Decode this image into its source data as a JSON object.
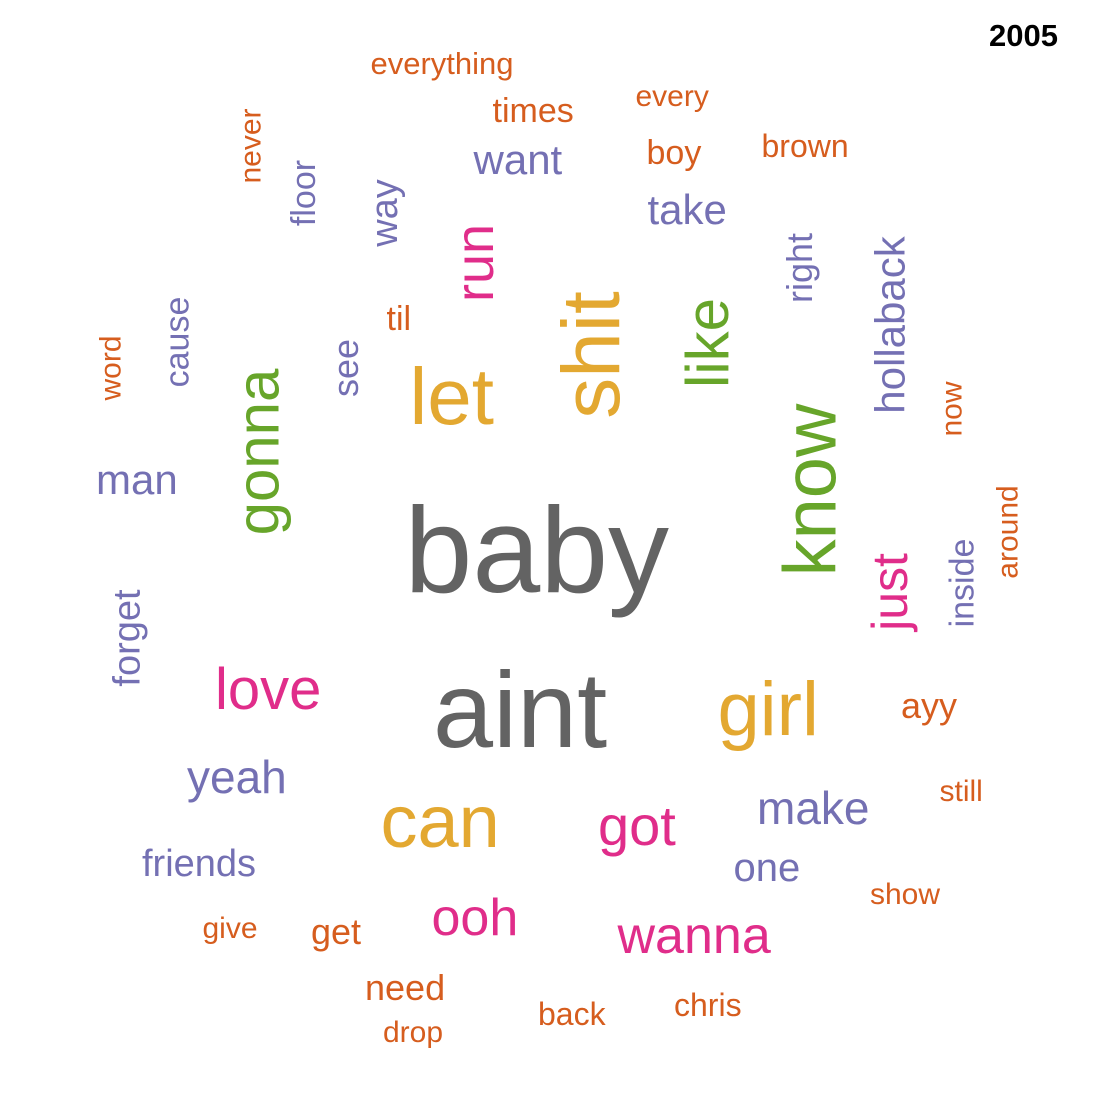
{
  "year": "2005",
  "palette": {
    "gray": "#636363",
    "gold": "#E3A831",
    "green": "#67A52A",
    "pink": "#E02D8A",
    "purple": "#7470B3",
    "orange": "#D65D1E"
  },
  "words": [
    {
      "text": "baby",
      "color": "gray",
      "orientation": "horizontal"
    },
    {
      "text": "aint",
      "color": "gray",
      "orientation": "horizontal"
    },
    {
      "text": "shit",
      "color": "gold",
      "orientation": "vertical"
    },
    {
      "text": "know",
      "color": "green",
      "orientation": "vertical"
    },
    {
      "text": "gonna",
      "color": "green",
      "orientation": "vertical"
    },
    {
      "text": "like",
      "color": "green",
      "orientation": "vertical"
    },
    {
      "text": "let",
      "color": "gold",
      "orientation": "horizontal"
    },
    {
      "text": "can",
      "color": "gold",
      "orientation": "horizontal"
    },
    {
      "text": "girl",
      "color": "gold",
      "orientation": "horizontal"
    },
    {
      "text": "run",
      "color": "pink",
      "orientation": "vertical"
    },
    {
      "text": "love",
      "color": "pink",
      "orientation": "horizontal"
    },
    {
      "text": "got",
      "color": "pink",
      "orientation": "horizontal"
    },
    {
      "text": "ooh",
      "color": "pink",
      "orientation": "horizontal"
    },
    {
      "text": "wanna",
      "color": "pink",
      "orientation": "horizontal"
    },
    {
      "text": "just",
      "color": "pink",
      "orientation": "vertical"
    },
    {
      "text": "make",
      "color": "purple",
      "orientation": "horizontal"
    },
    {
      "text": "yeah",
      "color": "purple",
      "orientation": "horizontal"
    },
    {
      "text": "hollaback",
      "color": "purple",
      "orientation": "vertical"
    },
    {
      "text": "man",
      "color": "purple",
      "orientation": "horizontal"
    },
    {
      "text": "forget",
      "color": "purple",
      "orientation": "vertical"
    },
    {
      "text": "want",
      "color": "purple",
      "orientation": "horizontal"
    },
    {
      "text": "take",
      "color": "purple",
      "orientation": "horizontal"
    },
    {
      "text": "friends",
      "color": "purple",
      "orientation": "horizontal"
    },
    {
      "text": "one",
      "color": "purple",
      "orientation": "horizontal"
    },
    {
      "text": "way",
      "color": "purple",
      "orientation": "vertical"
    },
    {
      "text": "right",
      "color": "purple",
      "orientation": "vertical"
    },
    {
      "text": "cause",
      "color": "purple",
      "orientation": "vertical"
    },
    {
      "text": "see",
      "color": "purple",
      "orientation": "vertical"
    },
    {
      "text": "floor",
      "color": "purple",
      "orientation": "vertical"
    },
    {
      "text": "inside",
      "color": "purple",
      "orientation": "vertical"
    },
    {
      "text": "times",
      "color": "orange",
      "orientation": "horizontal"
    },
    {
      "text": "boy",
      "color": "orange",
      "orientation": "horizontal"
    },
    {
      "text": "brown",
      "color": "orange",
      "orientation": "horizontal"
    },
    {
      "text": "get",
      "color": "orange",
      "orientation": "horizontal"
    },
    {
      "text": "need",
      "color": "orange",
      "orientation": "horizontal"
    },
    {
      "text": "ayy",
      "color": "orange",
      "orientation": "horizontal"
    },
    {
      "text": "everything",
      "color": "orange",
      "orientation": "horizontal"
    },
    {
      "text": "every",
      "color": "orange",
      "orientation": "horizontal"
    },
    {
      "text": "never",
      "color": "orange",
      "orientation": "vertical"
    },
    {
      "text": "til",
      "color": "orange",
      "orientation": "horizontal"
    },
    {
      "text": "word",
      "color": "orange",
      "orientation": "vertical"
    },
    {
      "text": "now",
      "color": "orange",
      "orientation": "vertical"
    },
    {
      "text": "around",
      "color": "orange",
      "orientation": "vertical"
    },
    {
      "text": "still",
      "color": "orange",
      "orientation": "horizontal"
    },
    {
      "text": "show",
      "color": "orange",
      "orientation": "horizontal"
    },
    {
      "text": "give",
      "color": "orange",
      "orientation": "horizontal"
    },
    {
      "text": "back",
      "color": "orange",
      "orientation": "horizontal"
    },
    {
      "text": "chris",
      "color": "orange",
      "orientation": "horizontal"
    },
    {
      "text": "drop",
      "color": "orange",
      "orientation": "horizontal"
    }
  ]
}
